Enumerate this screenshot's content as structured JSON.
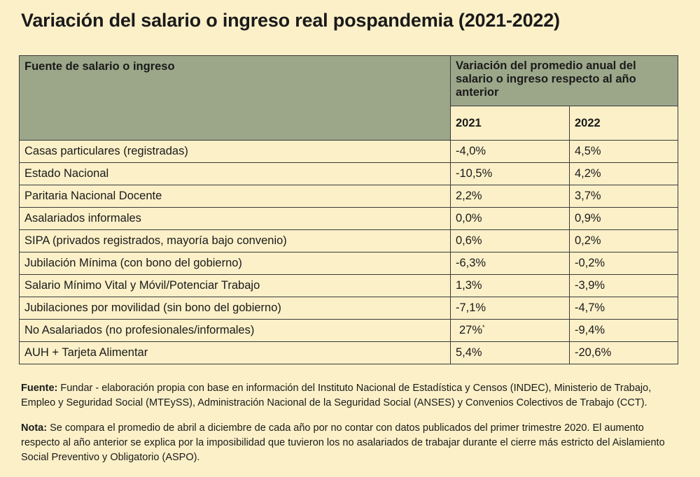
{
  "title": "Variación del salario o ingreso real pospandemia (2021-2022)",
  "table": {
    "header_source": "Fuente de salario o ingreso",
    "header_variation": "Variación del promedio anual del salario o ingreso respecto al año anterior",
    "years": [
      "2021",
      "2022"
    ],
    "rows": [
      {
        "source": "Casas particulares (registradas)",
        "v2021": "-4,0%",
        "v2022": "4,5%"
      },
      {
        "source": "Estado Nacional",
        "v2021": "-10,5%",
        "v2022": "4,2%"
      },
      {
        "source": "Paritaria Nacional Docente",
        "v2021": "2,2%",
        "v2022": "3,7%"
      },
      {
        "source": "Asalariados informales",
        "v2021": "0,0%",
        "v2022": "0,9%"
      },
      {
        "source": "SIPA (privados registrados, mayoría bajo convenio)",
        "v2021": "0,6%",
        "v2022": "0,2%"
      },
      {
        "source": "Jubilación Mínima (con bono del gobierno)",
        "v2021": "-6,3%",
        "v2022": "-0,2%"
      },
      {
        "source": "Salario Mínimo Vital y Móvil/Potenciar Trabajo",
        "v2021": "1,3%",
        "v2022": "-3,9%"
      },
      {
        "source": "Jubilaciones por movilidad (sin bono del gobierno)",
        "v2021": "-7,1%",
        "v2022": "-4,7%"
      },
      {
        "source": "No Asalariados (no profesionales/informales)",
        "v2021": "27%",
        "v2021_mark": "*",
        "v2022": "-9,4%"
      },
      {
        "source": "AUH + Tarjeta Alimentar",
        "v2021": "5,4%",
        "v2022": "-20,6%"
      }
    ]
  },
  "footnotes": {
    "fuente_label": "Fuente:",
    "fuente_text": "Fundar - elaboración propia con base en información del Instituto Nacional de Estadística y Censos (INDEC), Ministerio de Trabajo, Empleo y Seguridad Social (MTEySS), Administración Nacional de la Seguridad Social (ANSES) y Convenios Colectivos de Trabajo (CCT).",
    "nota_label": "Nota:",
    "nota_text": "Se compara el promedio de abril a diciembre de cada año por no contar con datos publicados del primer trimestre 2020. El aumento respecto al año anterior se explica por la imposibilidad que tuvieron los no asalariados de trabajar durante el cierre más estricto del Aislamiento Social Preventivo y Obligatorio (ASPO)."
  }
}
